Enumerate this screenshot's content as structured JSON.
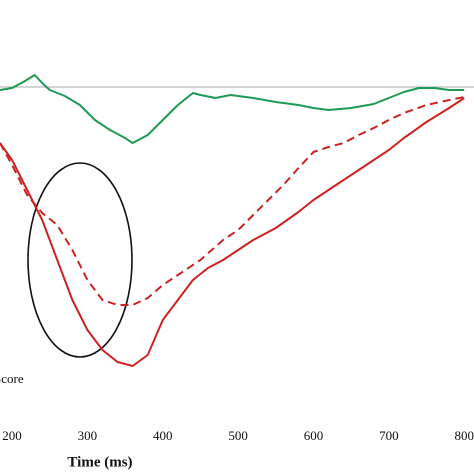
{
  "chart_data": {
    "type": "line",
    "x_label": "Time (ms)",
    "legend_text": "Score",
    "xlim": [
      184,
      813
    ],
    "ylim": [
      -38.7,
      8.7
    ],
    "xticks": [
      200,
      300,
      400,
      500,
      600,
      700,
      800
    ],
    "reference_line": 0,
    "series": [
      {
        "color": "#1f9a55",
        "dash": false,
        "x": [
          184,
          200,
          215,
          230,
          240,
          250,
          270,
          290,
          310,
          330,
          350,
          360,
          380,
          400,
          420,
          440,
          450,
          470,
          490,
          520,
          550,
          580,
          600,
          620,
          650,
          680,
          700,
          720,
          740,
          760,
          780,
          800
        ],
        "values": [
          -0.3,
          -0.1,
          0.5,
          1.2,
          0.4,
          -0.3,
          -0.9,
          -1.8,
          -3.3,
          -4.3,
          -5.1,
          -5.6,
          -4.8,
          -3.3,
          -1.8,
          -0.6,
          -0.8,
          -1.1,
          -0.8,
          -1.1,
          -1.5,
          -1.8,
          -2.1,
          -2.3,
          -2.1,
          -1.7,
          -1.1,
          -0.5,
          -0.1,
          -0.1,
          -0.3,
          -0.3
        ]
      },
      {
        "color": "#cc2222",
        "dash": false,
        "x": [
          184,
          200,
          220,
          240,
          260,
          280,
          300,
          320,
          340,
          360,
          380,
          400,
          420,
          440,
          460,
          480,
          500,
          520,
          550,
          580,
          600,
          640,
          680,
          700,
          720,
          750,
          780,
          800
        ],
        "values": [
          -5.6,
          -7.3,
          -10.3,
          -13.3,
          -17.3,
          -21.3,
          -24.3,
          -26.3,
          -27.5,
          -27.9,
          -26.8,
          -23.3,
          -21.3,
          -19.3,
          -18.1,
          -17.3,
          -16.3,
          -15.3,
          -14.1,
          -12.5,
          -11.3,
          -9.3,
          -7.3,
          -6.3,
          -5.1,
          -3.5,
          -2.1,
          -1.1
        ]
      },
      {
        "color": "#cc2222",
        "dash": true,
        "x": [
          184,
          200,
          220,
          240,
          260,
          280,
          300,
          320,
          340,
          360,
          380,
          400,
          420,
          450,
          480,
          500,
          520,
          540,
          560,
          580,
          600,
          620,
          640,
          660,
          680,
          700,
          720,
          750,
          780,
          800
        ],
        "values": [
          -5.6,
          -7.8,
          -10.8,
          -12.6,
          -13.8,
          -16.3,
          -19.3,
          -21.3,
          -21.8,
          -21.8,
          -21.1,
          -19.8,
          -18.8,
          -17.3,
          -15.3,
          -14.3,
          -12.8,
          -11.3,
          -9.8,
          -8.1,
          -6.5,
          -6.0,
          -5.6,
          -4.8,
          -4.1,
          -3.3,
          -2.6,
          -1.8,
          -1.3,
          -1.0
        ]
      }
    ]
  }
}
